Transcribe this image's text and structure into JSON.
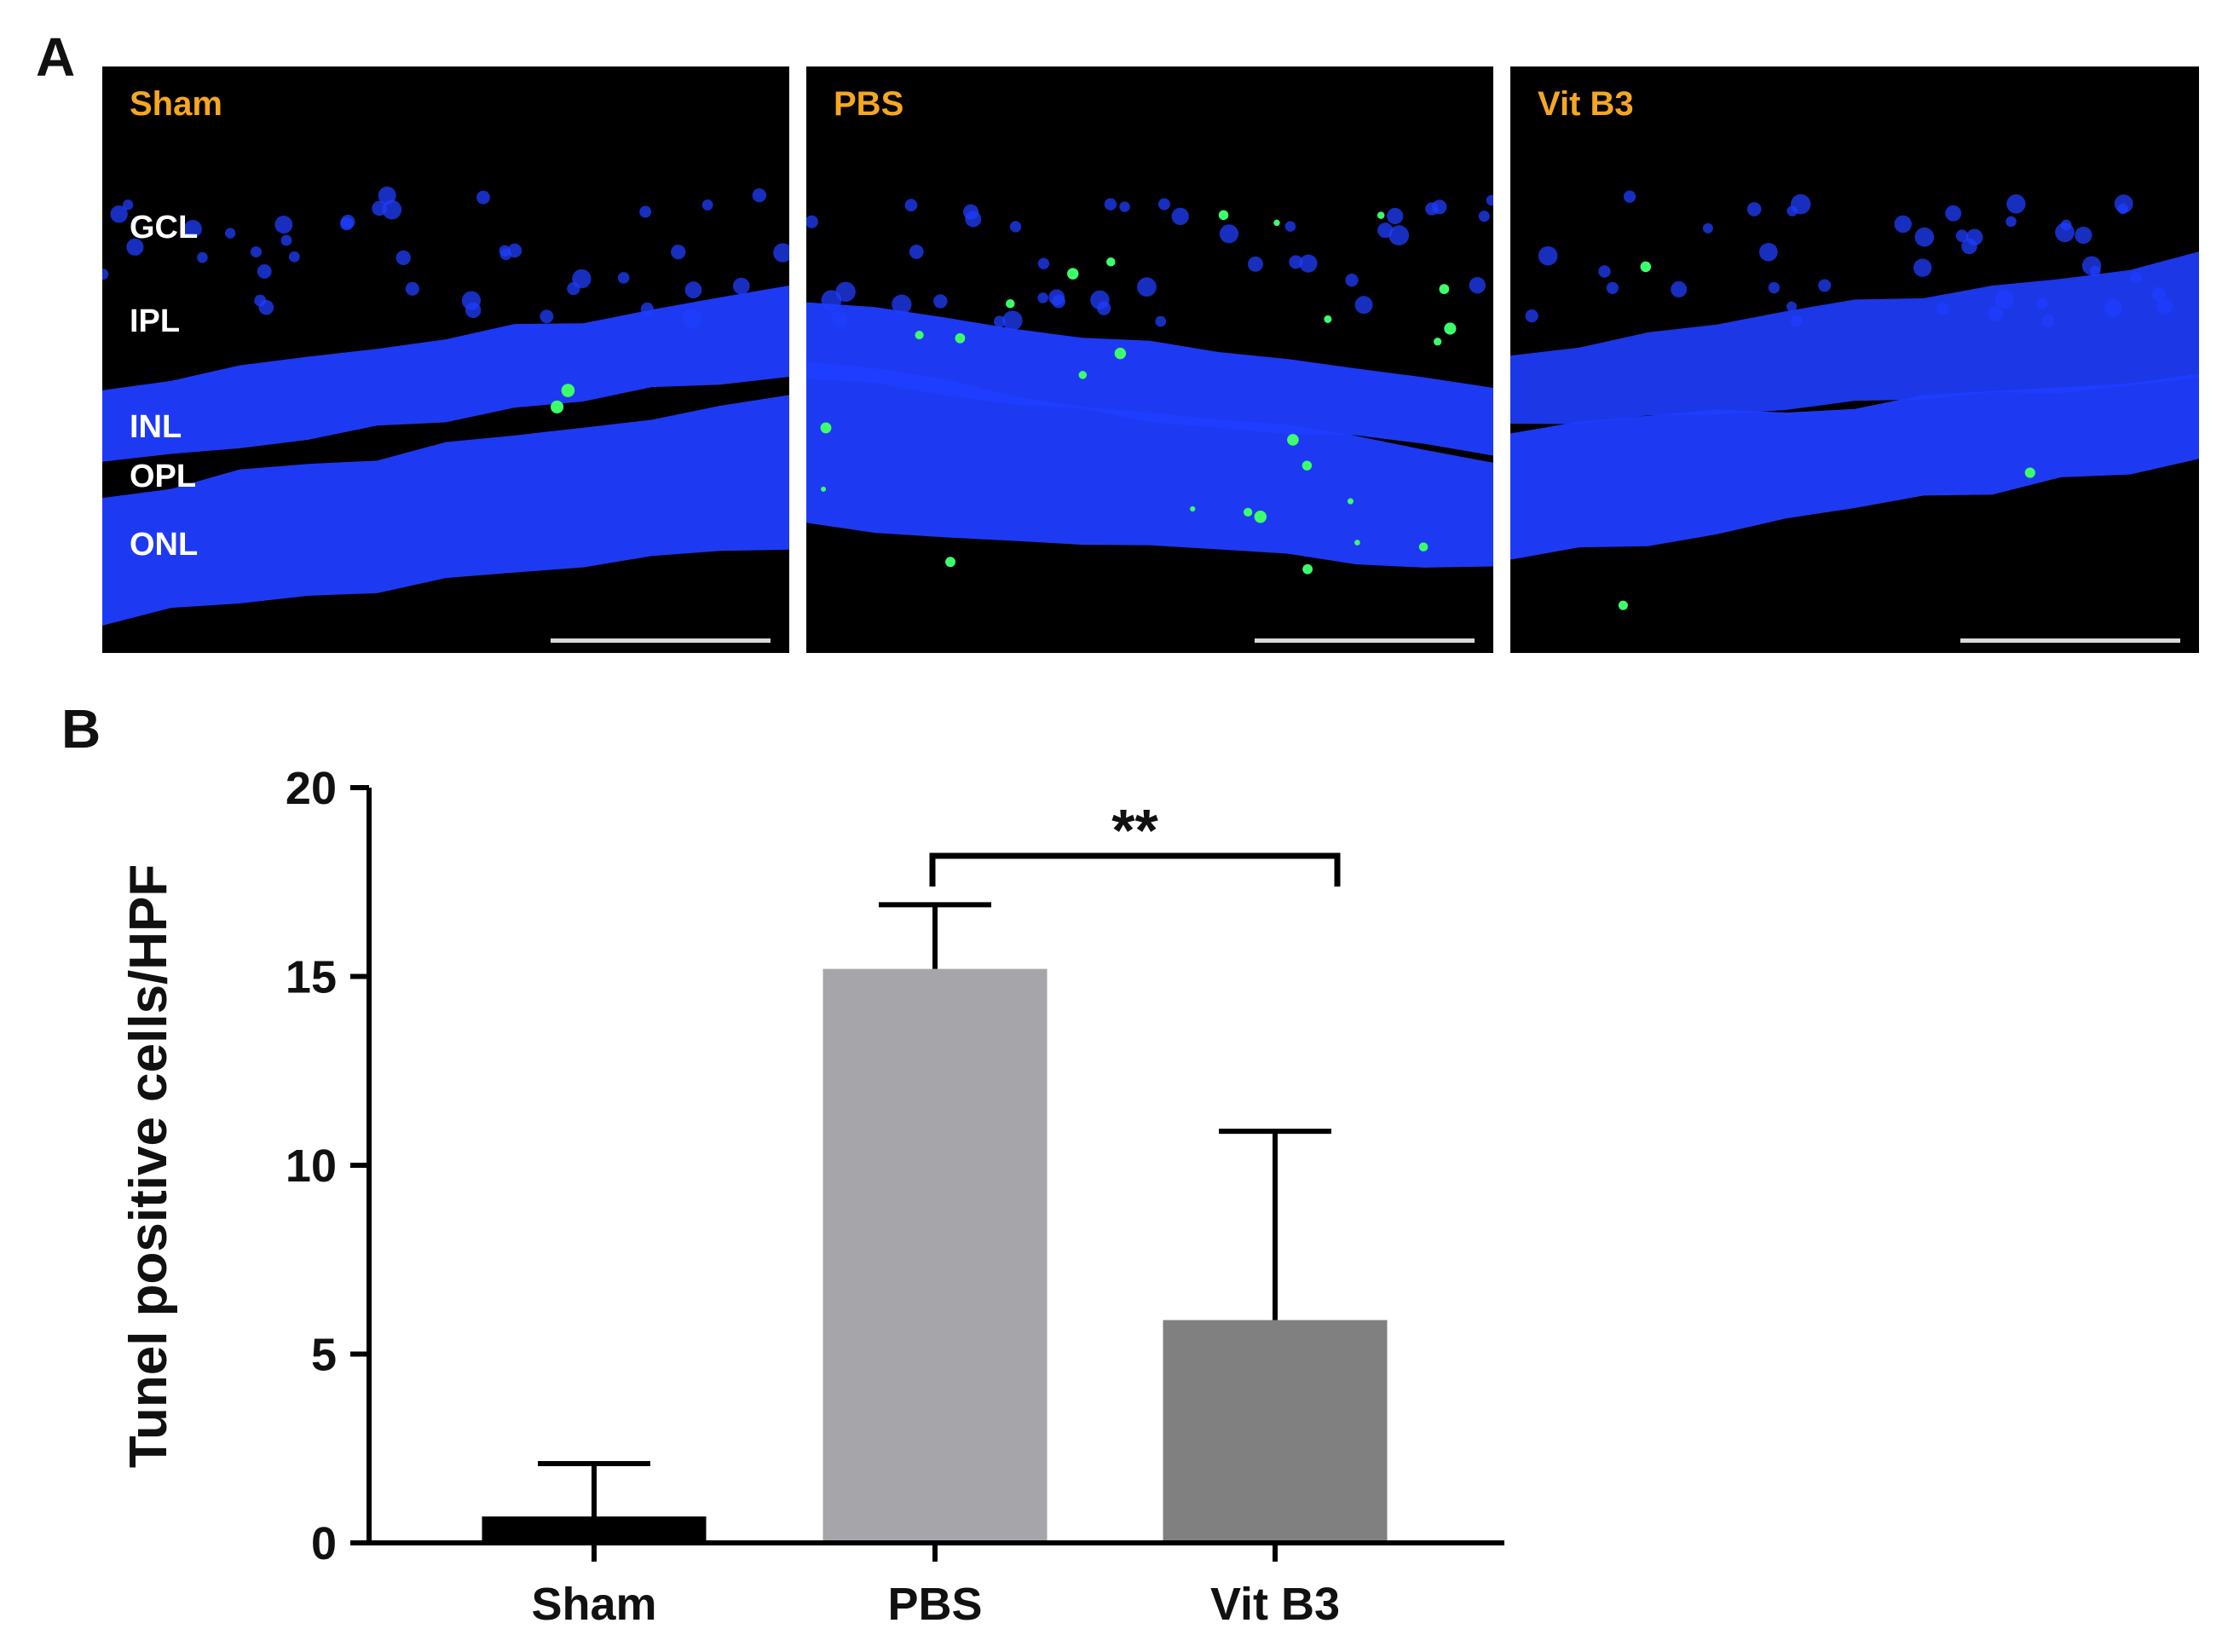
{
  "panel_a": {
    "letter": "A",
    "label_color": "#f5a623",
    "nuclei_color": "#1f3dff",
    "tunel_color": "#3cff6a",
    "scale_bar_color": "#d9d9d9",
    "layers": [
      "GCL",
      "IPL",
      "INL",
      "OPL",
      "ONL"
    ],
    "images": [
      {
        "label": "Sham"
      },
      {
        "label": "PBS"
      },
      {
        "label": "Vit B3"
      }
    ]
  },
  "panel_b": {
    "letter": "B",
    "chart_data": {
      "type": "bar",
      "categories": [
        "Sham",
        "PBS",
        "Vit B3"
      ],
      "values": [
        0.7,
        15.2,
        5.9
      ],
      "error_bars_upper": [
        2.1,
        16.9,
        10.9
      ],
      "colors": [
        "#000000",
        "#a6a5aa",
        "#808080"
      ],
      "ylabel": "Tunel positive cells/HPF",
      "ylim": [
        0,
        20
      ],
      "yticks": [
        0,
        5,
        10,
        15,
        20
      ],
      "significance": {
        "between": [
          "PBS",
          "Vit B3"
        ],
        "label": "**"
      },
      "grid": false,
      "legend": "none"
    }
  }
}
